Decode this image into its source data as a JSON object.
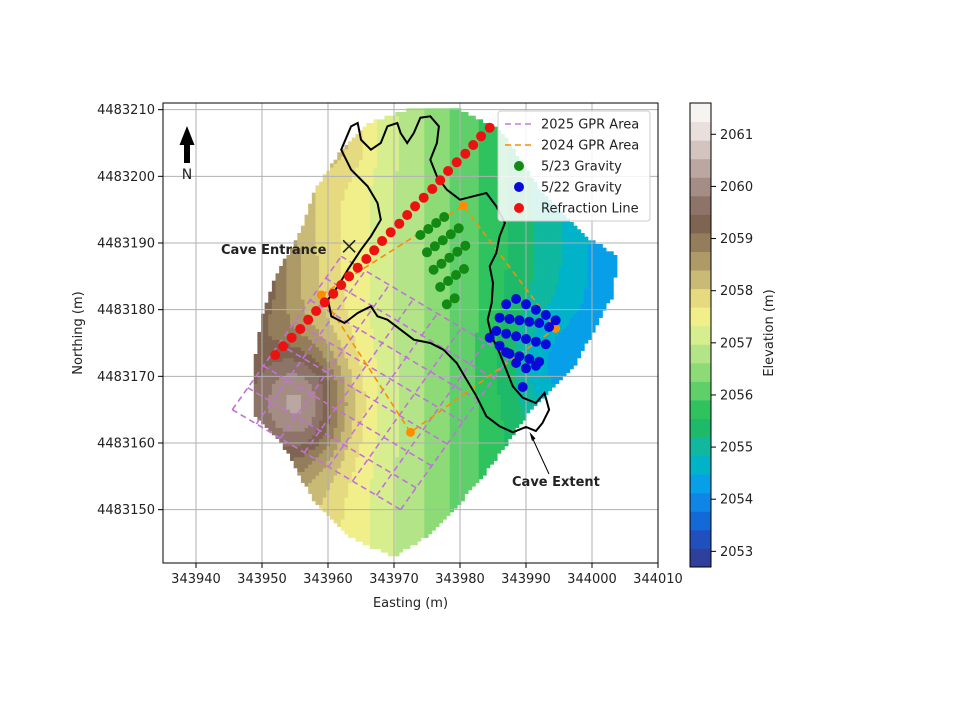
{
  "chart_data": {
    "type": "scatter",
    "title": "",
    "xlabel": "Easting (m)",
    "ylabel": "Northing (m)",
    "xlim": [
      343935,
      344010
    ],
    "ylim": [
      4483142,
      4483211
    ],
    "x_ticks": [
      343940,
      343950,
      343960,
      343970,
      343980,
      343990,
      344000,
      344010
    ],
    "y_ticks": [
      4483150,
      4483160,
      4483170,
      4483180,
      4483190,
      4483200,
      4483210
    ],
    "grid": true,
    "legend_position": "top-right",
    "legend": [
      {
        "label": "2025 GPR Area",
        "style": "dashed-line",
        "color": "#c879dd"
      },
      {
        "label": "2024 GPR Area",
        "style": "dashed-line",
        "color": "#ff8c00"
      },
      {
        "label": "5/23 Gravity",
        "style": "dot",
        "color": "#138a13"
      },
      {
        "label": "5/22 Gravity",
        "style": "dot",
        "color": "#0a0ad8"
      },
      {
        "label": "Refraction Line",
        "style": "dot",
        "color": "#ee1111"
      }
    ],
    "colorbar": {
      "label": "Elevation (m)",
      "range": [
        2052.7,
        2061.6
      ],
      "ticks": [
        2053,
        2054,
        2055,
        2056,
        2057,
        2058,
        2059,
        2060,
        2061
      ],
      "colors": [
        "#2f3f9c",
        "#214fbc",
        "#1369d5",
        "#0f85e6",
        "#089fe9",
        "#00b3c9",
        "#0fb89e",
        "#1eba6a",
        "#2ec35e",
        "#5fcf6a",
        "#8cdb77",
        "#b3e588",
        "#d7ee8e",
        "#f1ef8a",
        "#e6da80",
        "#c9ba76",
        "#ad9a67",
        "#937d5a",
        "#7f6551",
        "#8e7468",
        "#a48d85",
        "#bba7a2",
        "#d3c4c0",
        "#e9e0dd",
        "#f6f3f1"
      ]
    },
    "refraction_line": {
      "x": [
        343952.0,
        343953.2,
        343954.5,
        343955.8,
        343957.0,
        343958.2,
        343959.5,
        343960.8,
        343962.0,
        343963.2,
        343964.5,
        343965.8,
        343967.0,
        343968.2,
        343969.5,
        343970.8,
        343972.0,
        343973.2,
        343974.5,
        343975.8,
        343977.0,
        343978.2,
        343979.5,
        343980.8,
        343982.0,
        343983.2,
        343984.5
      ],
      "y": [
        4483173.2,
        4483174.5,
        4483175.8,
        4483177.1,
        4483178.5,
        4483179.8,
        4483181.1,
        4483182.4,
        4483183.7,
        4483185.0,
        4483186.3,
        4483187.6,
        4483188.9,
        4483190.3,
        4483191.6,
        4483192.9,
        4483194.2,
        4483195.5,
        4483196.8,
        4483198.1,
        4483199.4,
        4483200.8,
        4483202.1,
        4483203.4,
        4483204.7,
        4483206.0,
        4483207.3
      ]
    },
    "gravity_523": {
      "x": [
        343974.0,
        343975.2,
        343976.4,
        343977.6,
        343975.0,
        343976.2,
        343977.4,
        343978.6,
        343979.8,
        343976.0,
        343977.2,
        343978.4,
        343979.6,
        343980.8,
        343977.0,
        343978.2,
        343979.4,
        343980.6,
        343978.0,
        343979.2
      ],
      "y": [
        4483191.2,
        4483192.1,
        4483193.0,
        4483193.9,
        4483188.6,
        4483189.5,
        4483190.4,
        4483191.3,
        4483192.2,
        4483186.0,
        4483186.9,
        4483187.8,
        4483188.7,
        4483189.6,
        4483183.4,
        4483184.3,
        4483185.2,
        4483186.1,
        4483180.8,
        4483181.7
      ]
    },
    "gravity_522": {
      "x": [
        343987.0,
        343988.5,
        343990.0,
        343991.5,
        343993.0,
        343994.5,
        343986.0,
        343987.5,
        343989.0,
        343990.5,
        343992.0,
        343993.5,
        343985.5,
        343987.0,
        343988.5,
        343990.0,
        343991.5,
        343993.0,
        343984.5,
        343986.0,
        343987.5,
        343989.0,
        343990.5,
        343992.0,
        343987.0,
        343988.5,
        343990.0,
        343991.5,
        343989.5
      ],
      "y": [
        4483180.8,
        4483181.6,
        4483180.8,
        4483180.0,
        4483179.2,
        4483178.4,
        4483178.8,
        4483178.6,
        4483178.4,
        4483178.2,
        4483178.0,
        4483177.4,
        4483176.8,
        4483176.4,
        4483176.0,
        4483175.6,
        4483175.2,
        4483174.8,
        4483175.8,
        4483174.6,
        4483173.4,
        4483173.0,
        4483172.6,
        4483172.2,
        4483173.6,
        4483172.0,
        4483171.2,
        4483171.6,
        4483168.4
      ]
    },
    "gpr_2024": {
      "polygon": [
        [
          343959.0,
          4483182.2
        ],
        [
          343980.5,
          4483195.6
        ],
        [
          343994.5,
          4483177.2
        ],
        [
          343972.5,
          4483161.6
        ],
        [
          343959.0,
          4483182.2
        ]
      ],
      "vertex_markers": [
        [
          343959.0,
          4483182.2
        ],
        [
          343980.5,
          4483195.6
        ],
        [
          343994.5,
          4483177.2
        ],
        [
          343972.5,
          4483161.6
        ]
      ]
    },
    "gpr_2025": {
      "corners": [
        [
          343971.0,
          4483150.0
        ],
        [
          343987.5,
          4483173.0
        ],
        [
          343962.0,
          4483188.0
        ],
        [
          343945.5,
          4483165.0
        ]
      ],
      "lines_per_direction": 8
    },
    "cave_extent": [
      [
        343963.0,
        4483186.0
      ],
      [
        343961.5,
        4483183.5
      ],
      [
        343960.0,
        4483181.5
      ],
      [
        343960.5,
        4483179.0
      ],
      [
        343962.5,
        4483178.0
      ],
      [
        343964.5,
        4483179.5
      ],
      [
        343966.5,
        4483180.5
      ],
      [
        343967.5,
        4483179.0
      ],
      [
        343969.0,
        4483178.5
      ],
      [
        343971.0,
        4483177.0
      ],
      [
        343973.0,
        4483175.5
      ],
      [
        343975.5,
        4483175.0
      ],
      [
        343977.5,
        4483174.0
      ],
      [
        343979.5,
        4483172.0
      ],
      [
        343981.0,
        4483169.5
      ],
      [
        343982.5,
        4483167.0
      ],
      [
        343984.0,
        4483164.0
      ],
      [
        343986.0,
        4483162.5
      ],
      [
        343988.0,
        4483161.6
      ],
      [
        343990.0,
        4483162.4
      ],
      [
        343991.5,
        4483161.8
      ],
      [
        343992.5,
        4483163.0
      ],
      [
        343993.5,
        4483165.0
      ],
      [
        343992.8,
        4483167.5
      ],
      [
        343991.5,
        4483166.0
      ],
      [
        343989.5,
        4483166.8
      ],
      [
        343988.0,
        4483168.5
      ],
      [
        343987.0,
        4483171.0
      ],
      [
        343986.0,
        4483173.5
      ],
      [
        343984.8,
        4483176.0
      ],
      [
        343984.2,
        4483178.5
      ],
      [
        343984.8,
        4483181.0
      ],
      [
        343985.0,
        4483184.0
      ],
      [
        343984.5,
        4483186.5
      ],
      [
        343985.5,
        4483188.5
      ],
      [
        343986.0,
        4483191.0
      ],
      [
        343986.8,
        4483193.0
      ],
      [
        343985.5,
        4483195.5
      ],
      [
        343984.0,
        4483197.5
      ],
      [
        343982.0,
        4483197.0
      ],
      [
        343980.0,
        4483196.5
      ],
      [
        343978.0,
        4483198.0
      ],
      [
        343976.5,
        4483200.0
      ],
      [
        343975.5,
        4483202.5
      ],
      [
        343976.5,
        4483205.0
      ],
      [
        343976.8,
        4483207.5
      ],
      [
        343975.5,
        4483209.0
      ],
      [
        343974.0,
        4483208.8
      ],
      [
        343973.0,
        4483206.5
      ],
      [
        343972.0,
        4483205.0
      ],
      [
        343971.0,
        4483206.5
      ],
      [
        343970.5,
        4483208.0
      ],
      [
        343969.0,
        4483207.5
      ],
      [
        343968.0,
        4483205.0
      ],
      [
        343966.5,
        4483204.0
      ],
      [
        343965.0,
        4483205.5
      ],
      [
        343964.5,
        4483208.0
      ],
      [
        343963.5,
        4483207.5
      ],
      [
        343962.0,
        4483204.0
      ],
      [
        343963.5,
        4483201.0
      ],
      [
        343966.0,
        4483198.5
      ],
      [
        343967.5,
        4483196.0
      ],
      [
        343968.0,
        4483193.5
      ],
      [
        343966.5,
        4483191.0
      ],
      [
        343965.0,
        4483189.0
      ],
      [
        343963.0,
        4483186.0
      ]
    ],
    "annotations": [
      {
        "text": "Cave Entrance",
        "x": 343963.2,
        "y": 4483189.5
      },
      {
        "text": "Cave Extent",
        "x": 343990.5,
        "y": 4483162.0
      },
      {
        "text": "N"
      }
    ]
  }
}
